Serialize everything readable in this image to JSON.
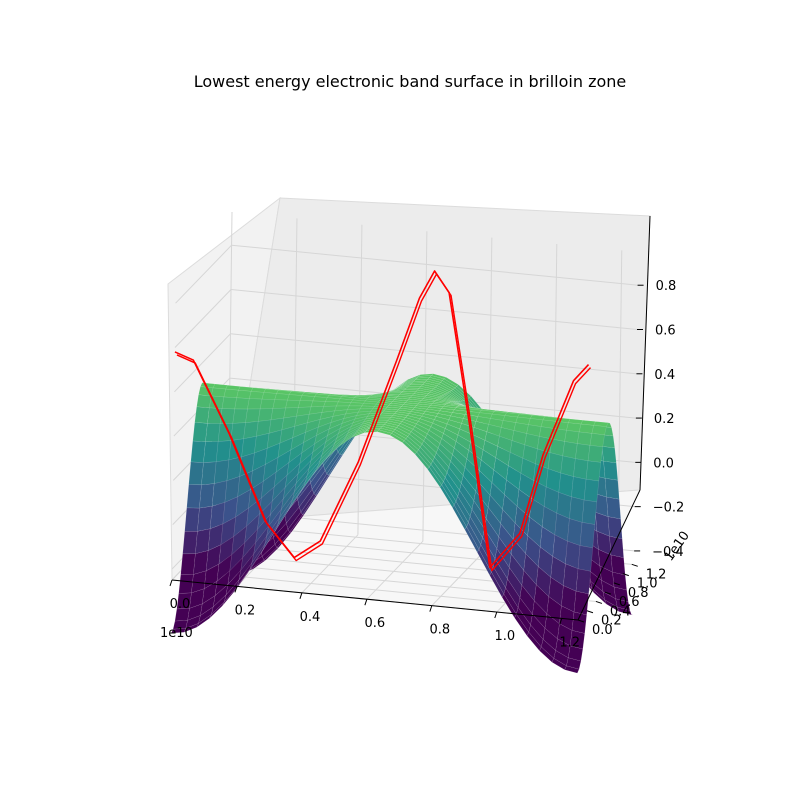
{
  "chart_data": {
    "type": "surface3d",
    "title": "Lowest energy electronic band surface in brilloin zone",
    "x_axis": {
      "offset_text": "1e10",
      "ticks": [
        "0.0",
        "0.2",
        "0.4",
        "0.6",
        "0.8",
        "1.0",
        "1.2"
      ],
      "range": [
        0,
        1.25
      ]
    },
    "y_axis": {
      "offset_text": "1e10",
      "ticks": [
        "0.0",
        "0.2",
        "0.4",
        "0.6",
        "0.8",
        "1.0",
        "1.2"
      ],
      "range": [
        0,
        1.25
      ]
    },
    "z_axis": {
      "ticks": [
        "−0.4",
        "−0.2",
        "0.0",
        "0.2",
        "0.4",
        "0.6",
        "0.8"
      ],
      "range": [
        -0.45,
        0.95
      ]
    },
    "surface": {
      "colormap": "viridis",
      "value_range": [
        -0.43,
        0.58
      ],
      "grid_lines": true
    },
    "path_line": {
      "color": "#ff0000",
      "points": [
        {
          "x": 0.0,
          "y": 0.0,
          "z": 0.58
        },
        {
          "x": 0.05,
          "y": 0.05,
          "z": 0.54
        },
        {
          "x": 0.15,
          "y": 0.15,
          "z": 0.2
        },
        {
          "x": 0.25,
          "y": 0.25,
          "z": -0.2
        },
        {
          "x": 0.33,
          "y": 0.33,
          "z": -0.37
        },
        {
          "x": 0.4,
          "y": 0.4,
          "z": -0.3
        },
        {
          "x": 0.5,
          "y": 0.5,
          "z": 0.05
        },
        {
          "x": 0.6,
          "y": 0.6,
          "z": 0.5
        },
        {
          "x": 0.66,
          "y": 0.66,
          "z": 0.78
        },
        {
          "x": 0.7,
          "y": 0.7,
          "z": 0.9
        },
        {
          "x": 0.74,
          "y": 0.74,
          "z": 0.8
        },
        {
          "x": 0.8,
          "y": 0.8,
          "z": 0.2
        },
        {
          "x": 0.86,
          "y": 0.86,
          "z": -0.45
        },
        {
          "x": 0.94,
          "y": 0.94,
          "z": -0.3
        },
        {
          "x": 1.0,
          "y": 1.0,
          "z": 0.05
        },
        {
          "x": 1.08,
          "y": 1.08,
          "z": 0.38
        },
        {
          "x": 1.12,
          "y": 1.12,
          "z": 0.45
        }
      ]
    }
  }
}
